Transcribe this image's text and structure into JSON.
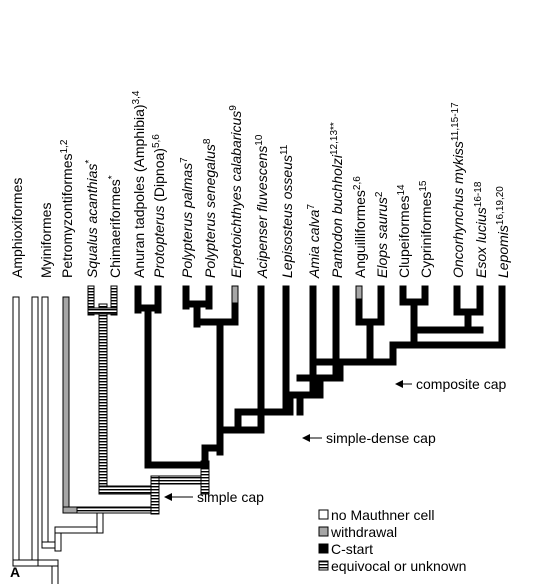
{
  "panel_label": "A",
  "taxa": [
    {
      "parts": [
        {
          "t": "Amphioxiformes",
          "i": false
        }
      ]
    },
    {
      "parts": [
        {
          "t": "Myiniformes",
          "i": false
        }
      ]
    },
    {
      "parts": [
        {
          "t": "Petromyzontiformes",
          "i": false
        },
        {
          "t": "1,2",
          "sup": true
        }
      ]
    },
    {
      "parts": [
        {
          "t": "Squalus acanthias",
          "i": true
        },
        {
          "t": "*",
          "sup": true
        }
      ]
    },
    {
      "parts": [
        {
          "t": "Chimaeriformes",
          "i": false
        },
        {
          "t": "*",
          "sup": true
        }
      ]
    },
    {
      "parts": [
        {
          "t": "Anuran tadpoles (Amphibia)",
          "i": false
        },
        {
          "t": "3,4",
          "sup": true
        }
      ]
    },
    {
      "parts": [
        {
          "t": "Protopterus",
          "i": true
        },
        {
          "t": " (Dipnoa)",
          "i": false
        },
        {
          "t": "5,6",
          "sup": true
        }
      ]
    },
    {
      "parts": [
        {
          "t": "Polypterus palmas",
          "i": true
        },
        {
          "t": "7",
          "sup": true
        }
      ]
    },
    {
      "parts": [
        {
          "t": "Polypterus senegalus",
          "i": true
        },
        {
          "t": "8",
          "sup": true
        }
      ]
    },
    {
      "parts": [
        {
          "t": "Erpetoichthyes calabaricus",
          "i": true
        },
        {
          "t": "9",
          "sup": true
        }
      ]
    },
    {
      "parts": [
        {
          "t": "Acipenser fluvescens",
          "i": true
        },
        {
          "t": "10",
          "sup": true
        }
      ]
    },
    {
      "parts": [
        {
          "t": "Lepisosteus osseus",
          "i": true
        },
        {
          "t": "11",
          "sup": true
        }
      ]
    },
    {
      "parts": [
        {
          "t": "Amia calva",
          "i": true
        },
        {
          "t": "7",
          "sup": true
        }
      ]
    },
    {
      "parts": [
        {
          "t": "Pantodon buchholzi",
          "i": true
        },
        {
          "t": "12,13**",
          "sup": true
        }
      ]
    },
    {
      "parts": [
        {
          "t": "Anguilliformes",
          "i": false
        },
        {
          "t": "2,6",
          "sup": true
        }
      ]
    },
    {
      "parts": [
        {
          "t": "Elops saurus",
          "i": true
        },
        {
          "t": "2",
          "sup": true
        }
      ]
    },
    {
      "parts": [
        {
          "t": "Clupeiformes",
          "i": false
        },
        {
          "t": "14",
          "sup": true
        }
      ]
    },
    {
      "parts": [
        {
          "t": "Cypriniformes",
          "i": false
        },
        {
          "t": "15",
          "sup": true
        }
      ]
    },
    {
      "parts": [
        {
          "t": "Oncorhynchus mykiss",
          "i": true
        },
        {
          "t": "11,15-17",
          "sup": true
        }
      ]
    },
    {
      "parts": [
        {
          "t": "Esox lucius",
          "i": true
        },
        {
          "t": "16-18",
          "sup": true
        }
      ]
    },
    {
      "parts": [
        {
          "t": "Lepomis",
          "i": true
        },
        {
          "t": "16,19,20",
          "sup": true
        }
      ]
    }
  ],
  "annotations": [
    {
      "label": "composite cap"
    },
    {
      "label": "simple-dense cap"
    },
    {
      "label": "simple cap"
    }
  ],
  "legend": [
    {
      "label": "no Mauthner cell",
      "style": "none"
    },
    {
      "label": "withdrawal",
      "style": "withdrawal"
    },
    {
      "label": "C-start",
      "style": "cstart"
    },
    {
      "label": "equivocal or unknown",
      "style": "equivocal"
    }
  ],
  "colors": {
    "none_fill": "#ffffff",
    "withdrawal_fill": "#a6a6a6",
    "cstart_fill": "#000000",
    "equivocal_stripe": "#000000",
    "outline": "#000000"
  }
}
